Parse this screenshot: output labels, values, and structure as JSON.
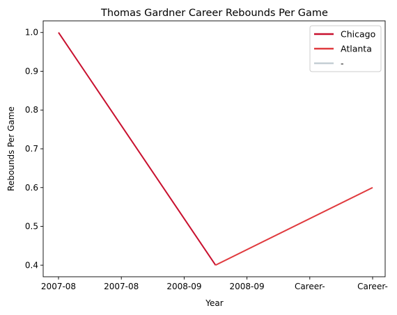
{
  "chart_data": {
    "type": "line",
    "title": "Thomas Gardner  Career Rebounds Per Game",
    "xlabel": "Year",
    "ylabel": "Rebounds Per Game",
    "x_ticks": [
      "2007-08",
      "2007-08",
      "2008-09",
      "2008-09",
      "Career-",
      "Career-"
    ],
    "ylim": [
      0.37,
      1.03
    ],
    "y_ticks": [
      "0.4",
      "0.5",
      "0.6",
      "0.7",
      "0.8",
      "0.9",
      "1.0"
    ],
    "grid": false,
    "legend_position": "top-right",
    "series": [
      {
        "name": "Chicago",
        "color": "#c8102e",
        "points": [
          [
            0,
            1.0
          ],
          [
            2.5,
            0.4
          ]
        ]
      },
      {
        "name": "Atlanta",
        "color": "#e03a3e",
        "points": [
          [
            2.5,
            0.4
          ],
          [
            5,
            0.6
          ]
        ]
      },
      {
        "name": "-",
        "color": "#c4ced4",
        "points": []
      }
    ]
  }
}
